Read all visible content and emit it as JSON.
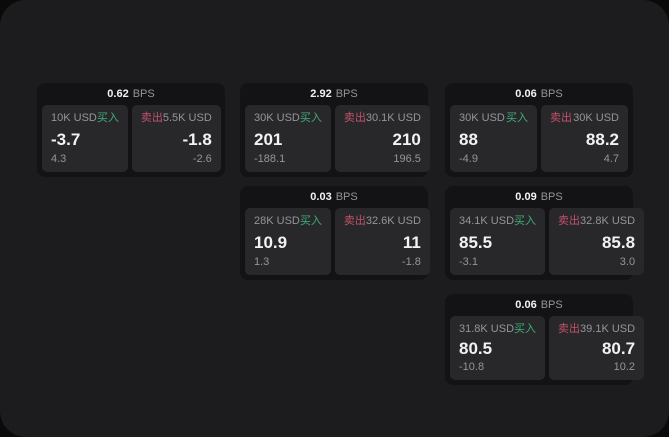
{
  "labels": {
    "bps": "BPS",
    "buy": "买入",
    "sell": "卖出"
  },
  "colors": {
    "buy-accent": "#3fae77",
    "sell-accent": "#c2516a",
    "value-text": "#f2f2f4",
    "muted-text": "#95959a",
    "card-bg": "#131315",
    "panel-bg": "#28282b",
    "surface-bg": "#1c1c1e",
    "outside-bg": "#0a0a0a"
  },
  "cards": [
    {
      "bps": "0.62",
      "buy": {
        "amount": "10K USD",
        "value": "-3.7",
        "delta": "4.3"
      },
      "sell": {
        "amount": "5.5K USD",
        "value": "-1.8",
        "delta": "-2.6"
      }
    },
    {
      "bps": "2.92",
      "buy": {
        "amount": "30K USD",
        "value": "201",
        "delta": "-188.1"
      },
      "sell": {
        "amount": "30.1K USD",
        "value": "210",
        "delta": "196.5"
      }
    },
    {
      "bps": "0.06",
      "buy": {
        "amount": "30K USD",
        "value": "88",
        "delta": "-4.9"
      },
      "sell": {
        "amount": "30K USD",
        "value": "88.2",
        "delta": "4.7"
      }
    },
    {
      "bps": "0.03",
      "buy": {
        "amount": "28K USD",
        "value": "10.9",
        "delta": "1.3"
      },
      "sell": {
        "amount": "32.6K USD",
        "value": "11",
        "delta": "-1.8"
      }
    },
    {
      "bps": "0.09",
      "buy": {
        "amount": "34.1K USD",
        "value": "85.5",
        "delta": "-3.1"
      },
      "sell": {
        "amount": "32.8K USD",
        "value": "85.8",
        "delta": "3.0"
      }
    },
    {
      "bps": "0.06",
      "buy": {
        "amount": "31.8K USD",
        "value": "80.5",
        "delta": "-10.8"
      },
      "sell": {
        "amount": "39.1K USD",
        "value": "80.7",
        "delta": "10.2"
      }
    }
  ]
}
